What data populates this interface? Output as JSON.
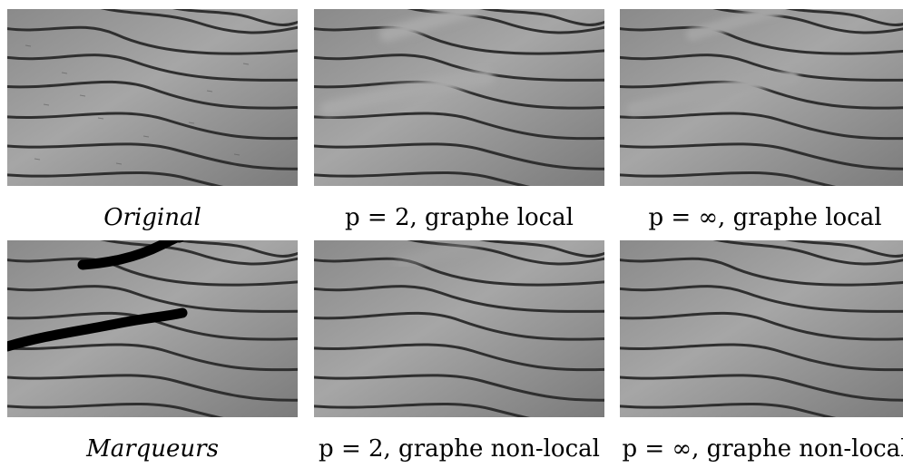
{
  "figure": {
    "captions": {
      "original": "Original",
      "p2_local": "p = 2, graphe local",
      "pinf_local": "p = ∞, graphe local",
      "markers": "Marqueurs",
      "p2_nonlocal": "p = 2, graphe non-local",
      "pinf_nonlocal": "p = ∞, graphe non-local"
    },
    "panel_content": {
      "texture": "wood-grain",
      "colors": {
        "wood_light": "#a6a6a6",
        "wood_mid": "#8f8f8f",
        "grain_dark": "#2f2f2f",
        "marker": "#000000",
        "blur_streak": "#a9a9a9"
      }
    }
  }
}
